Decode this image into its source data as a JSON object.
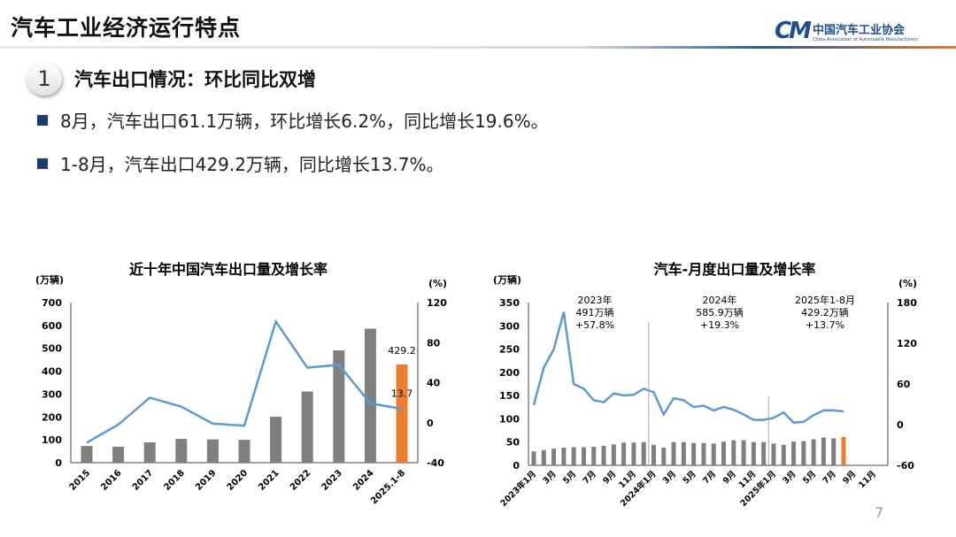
{
  "header": {
    "title": "汽车工业经济运行特点",
    "logo_cn": "中国汽车工业协会",
    "logo_en": "China Association of Automobile Manufacturers",
    "logo_mark": "CM"
  },
  "section": {
    "number": "1",
    "heading": "汽车出口情况：环比同比双增"
  },
  "bullets": [
    "8月，汽车出口61.1万辆，环比增长6.2%，同比增长19.6%。",
    "1-8月，汽车出口429.2万辆，同比增长13.7%。"
  ],
  "page_number": "7",
  "colors": {
    "bar": "#7f7f7f",
    "highlight": "#ed7d31",
    "line": "#5b9bd5",
    "brand": "#1f4e8c"
  },
  "chart_data": [
    {
      "type": "bar+line",
      "title": "近十年中国汽车出口量及增长率",
      "ylabel": "(万辆)",
      "y2label": "(%)",
      "ylim": [
        0,
        700
      ],
      "yticks": [
        0,
        100,
        200,
        300,
        400,
        500,
        600,
        700
      ],
      "y2lim": [
        -40,
        120
      ],
      "y2ticks": [
        -40,
        0,
        40,
        80,
        120
      ],
      "categories": [
        "2015",
        "2016",
        "2017",
        "2018",
        "2019",
        "2020",
        "2021",
        "2022",
        "2023",
        "2024",
        "2025.1-8"
      ],
      "series": [
        {
          "kind": "bar",
          "values": [
            73,
            70,
            89,
            104,
            102,
            100,
            201,
            311,
            491,
            585.9,
            429.2
          ]
        },
        {
          "kind": "line",
          "axis": "right",
          "values": [
            -20,
            -2,
            25,
            16,
            -1,
            -3,
            101,
            55,
            57.8,
            19.3,
            13.7
          ]
        }
      ],
      "data_labels": {
        "bar_last": "429.2",
        "line_last": "13.7"
      },
      "grid": false
    },
    {
      "type": "bar+line",
      "title": "汽车-月度出口量及增长率",
      "ylabel": "(万辆)",
      "y2label": "(%)",
      "ylim": [
        0,
        350
      ],
      "yticks": [
        0,
        50,
        100,
        150,
        200,
        250,
        300,
        350
      ],
      "y2lim": [
        -60,
        180
      ],
      "y2ticks": [
        -60,
        0,
        60,
        120,
        180
      ],
      "xticks": [
        "2023年1月",
        "3月",
        "5月",
        "7月",
        "9月",
        "11月",
        "2024年1月",
        "3月",
        "5月",
        "7月",
        "9月",
        "11月",
        "2025年1月",
        "3月",
        "5月",
        "7月",
        "9月",
        "11月"
      ],
      "series": [
        {
          "kind": "bar",
          "values": [
            30,
            33,
            36,
            38,
            39,
            39,
            40,
            42,
            45,
            49,
            49,
            50,
            44,
            38,
            50,
            50,
            48,
            48,
            47,
            51,
            54,
            54,
            50,
            50,
            47,
            44,
            51,
            52,
            56,
            60,
            58,
            61.1
          ]
        },
        {
          "kind": "line",
          "axis": "right",
          "values": [
            29,
            84,
            111,
            166,
            60,
            53,
            36,
            33,
            46,
            43,
            44,
            53,
            48,
            15,
            39,
            36,
            26,
            28,
            21,
            26,
            22,
            15,
            7,
            7,
            10,
            18,
            3,
            4,
            14,
            21,
            21,
            19.6
          ]
        }
      ],
      "annotations": [
        {
          "lines": [
            "2023年",
            "491万辆",
            "+57.8%"
          ]
        },
        {
          "lines": [
            "2024年",
            "585.9万辆",
            "+19.3%"
          ]
        },
        {
          "lines": [
            "2025年1-8月",
            "429.2万辆",
            "+13.7%"
          ]
        }
      ],
      "grid": false
    }
  ]
}
